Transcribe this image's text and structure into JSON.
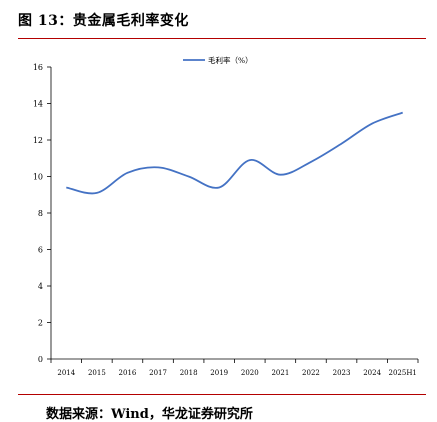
{
  "figure": {
    "title": "图 13：贵金属毛利率变化",
    "source": "数据来源：Wind，华龙证券研究所"
  },
  "colors": {
    "series": "#4472c4",
    "rule": "#b30000"
  },
  "chart_data": {
    "type": "line",
    "title": "",
    "xlabel": "",
    "ylabel": "",
    "legend_position": "top-center",
    "grid": false,
    "ylim": [
      0,
      16
    ],
    "yticks": [
      0,
      2,
      4,
      6,
      8,
      10,
      12,
      14,
      16
    ],
    "categories": [
      "2014",
      "2015",
      "2016",
      "2017",
      "2018",
      "2019",
      "2020",
      "2021",
      "2022",
      "2023",
      "2024",
      "2025H1"
    ],
    "series": [
      {
        "name": "毛利率（%）",
        "values": [
          9.4,
          9.1,
          10.2,
          10.5,
          10.0,
          9.4,
          10.9,
          10.1,
          10.8,
          11.8,
          12.9,
          13.5
        ]
      }
    ]
  }
}
